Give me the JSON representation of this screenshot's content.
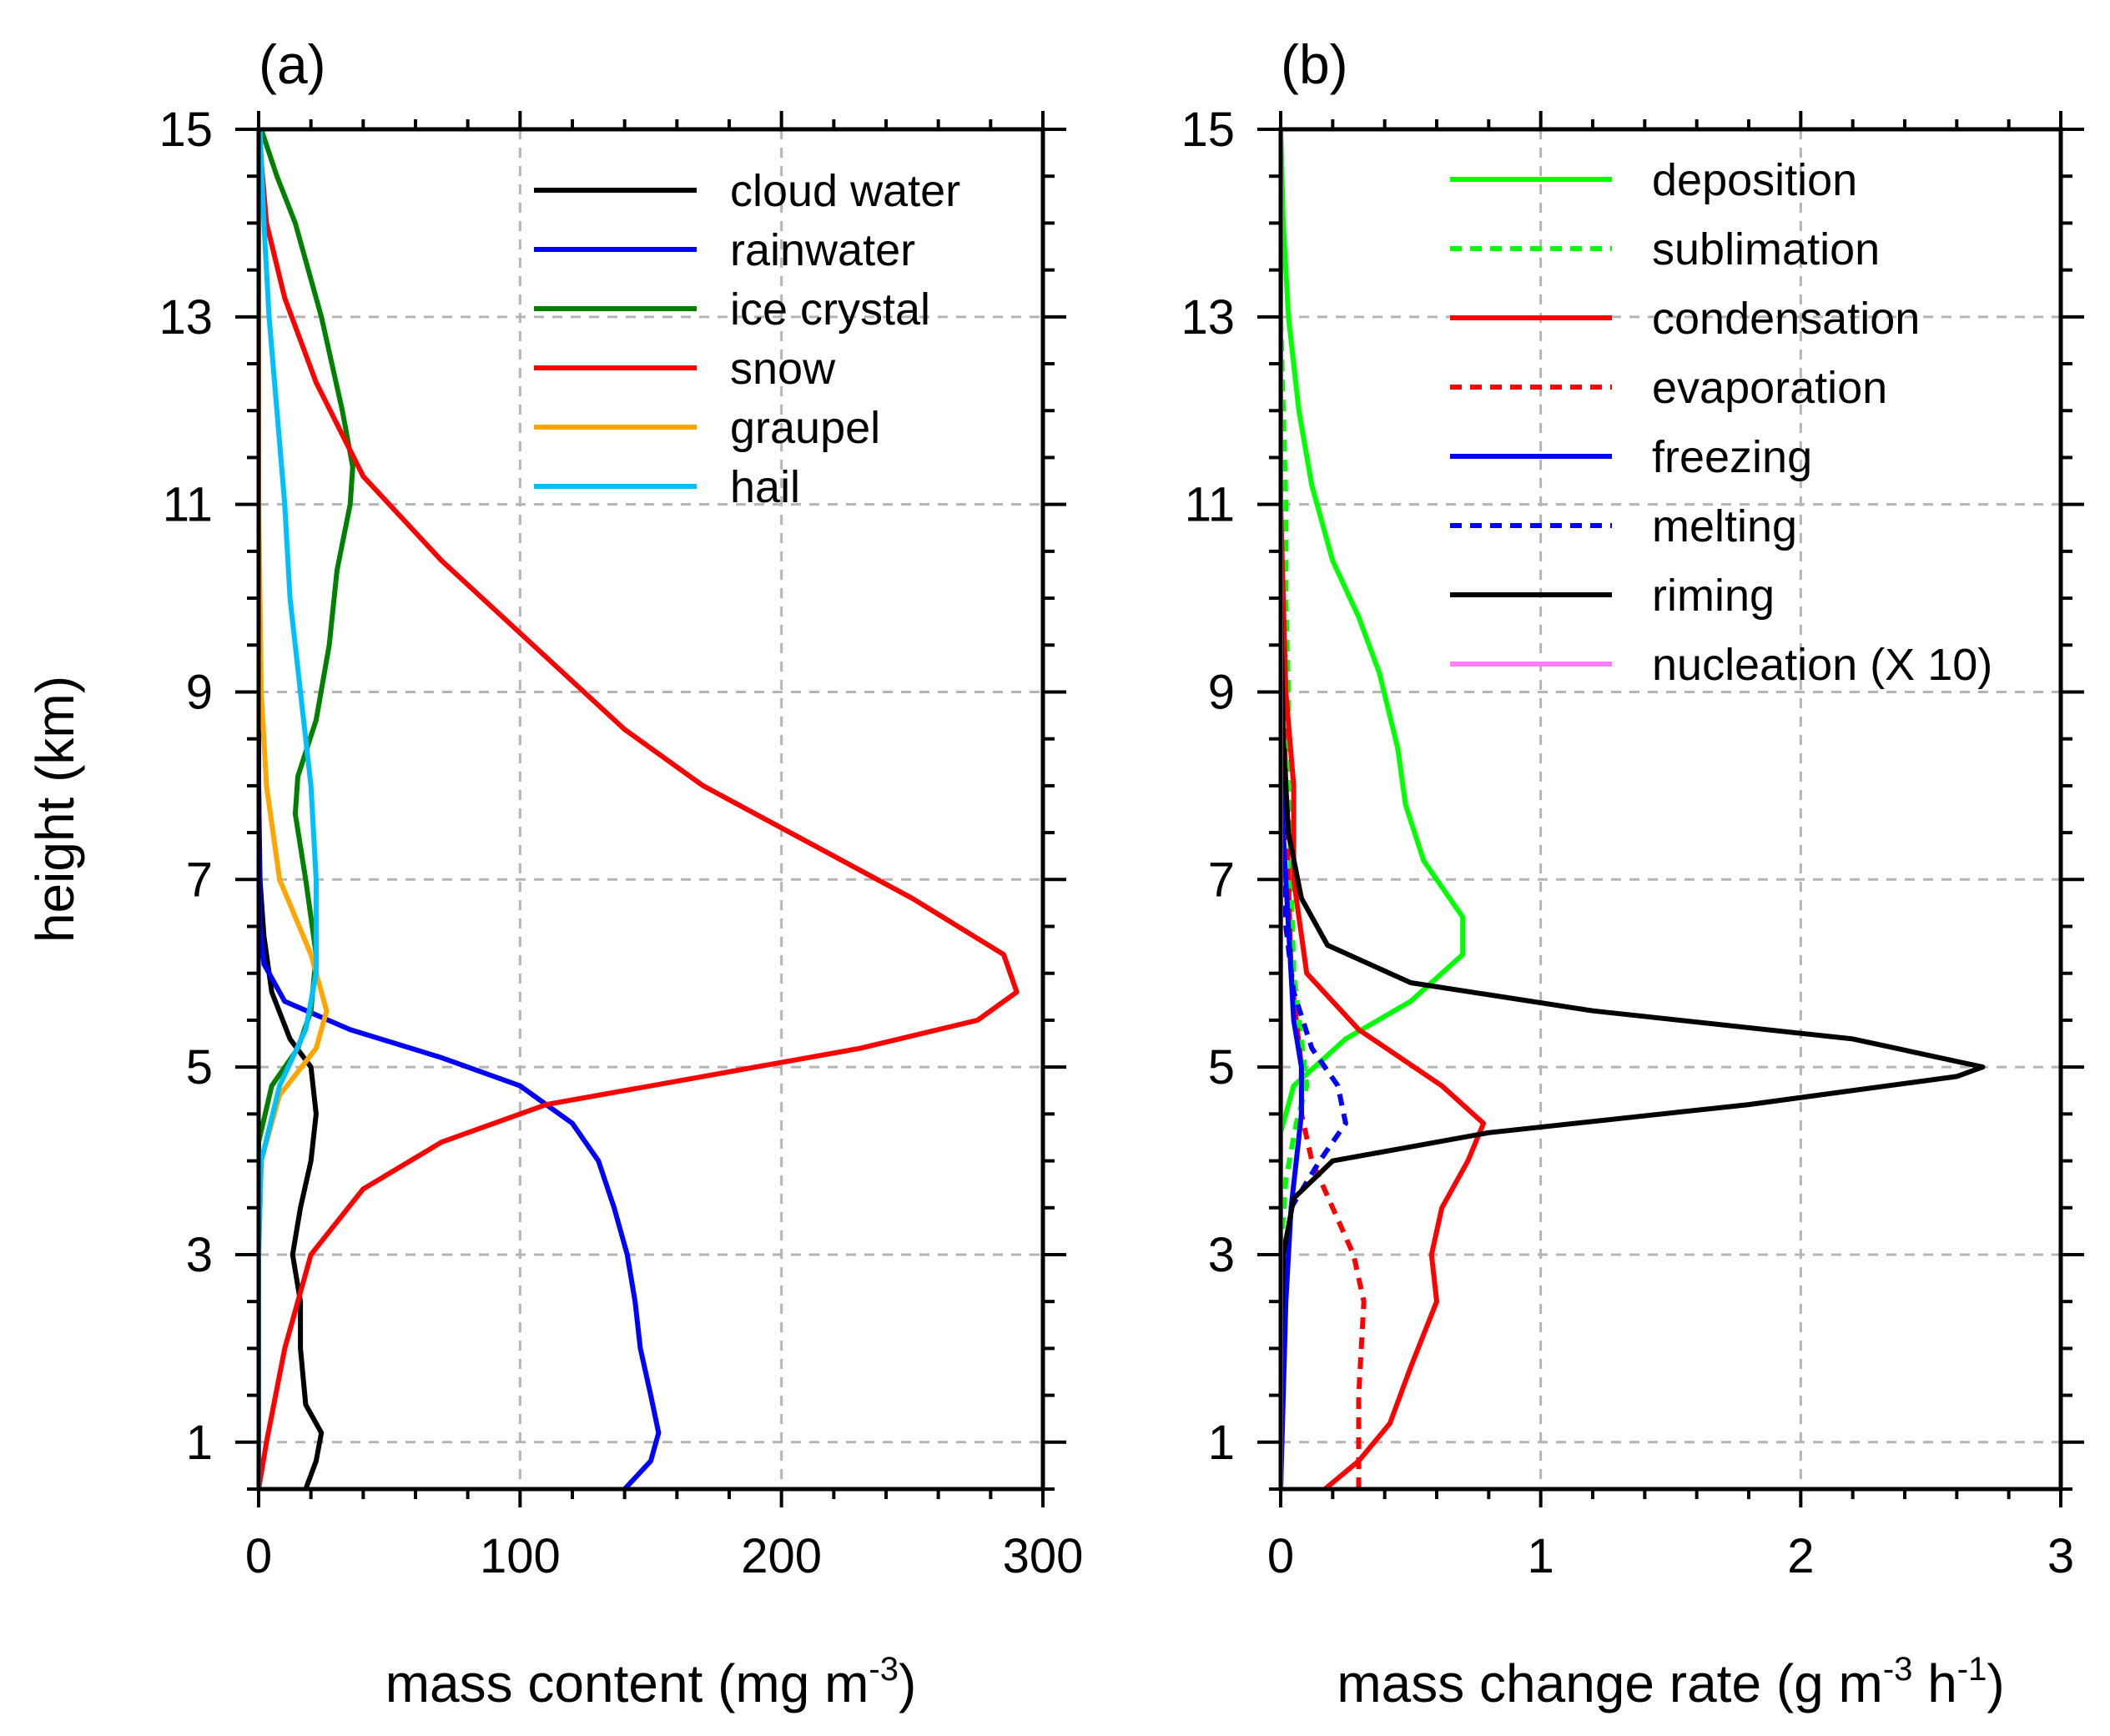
{
  "chart_data": [
    {
      "type": "line",
      "panel_label": "(a)",
      "xlabel": "mass content (mg m",
      "xlabel_sup": "-3",
      "xlabel_suffix": ")",
      "ylabel": "height (km)",
      "xlim": [
        0,
        300
      ],
      "ylim": [
        0.5,
        15
      ],
      "xticks": [
        0,
        100,
        200,
        300
      ],
      "yticks": [
        1,
        3,
        5,
        7,
        9,
        11,
        13,
        15
      ],
      "grid": true,
      "legend_position": "top-right",
      "series": [
        {
          "name": "cloud water",
          "color": "#000000",
          "dash": false,
          "points": [
            [
              18,
              0.5
            ],
            [
              22,
              0.8
            ],
            [
              24,
              1.1
            ],
            [
              18,
              1.4
            ],
            [
              16,
              2.0
            ],
            [
              16,
              2.5
            ],
            [
              13,
              3.0
            ],
            [
              16,
              3.5
            ],
            [
              20,
              4.0
            ],
            [
              22,
              4.5
            ],
            [
              20,
              5.0
            ],
            [
              12,
              5.3
            ],
            [
              5,
              5.8
            ],
            [
              2,
              6.4
            ],
            [
              0.5,
              7.0
            ],
            [
              0,
              8.0
            ],
            [
              0,
              10
            ],
            [
              0,
              15
            ]
          ]
        },
        {
          "name": "rainwater",
          "color": "#0000ff",
          "dash": false,
          "points": [
            [
              140,
              0.5
            ],
            [
              150,
              0.8
            ],
            [
              153,
              1.1
            ],
            [
              150,
              1.5
            ],
            [
              146,
              2.0
            ],
            [
              144,
              2.5
            ],
            [
              141,
              3.0
            ],
            [
              136,
              3.5
            ],
            [
              130,
              4.0
            ],
            [
              120,
              4.4
            ],
            [
              100,
              4.8
            ],
            [
              70,
              5.1
            ],
            [
              35,
              5.4
            ],
            [
              10,
              5.7
            ],
            [
              2,
              6.1
            ],
            [
              0.5,
              6.5
            ],
            [
              0,
              8
            ],
            [
              0,
              15
            ]
          ]
        },
        {
          "name": "ice crystal",
          "color": "#008000",
          "dash": false,
          "points": [
            [
              0,
              0.5
            ],
            [
              0,
              3.5
            ],
            [
              0,
              4.2
            ],
            [
              5,
              4.8
            ],
            [
              15,
              5.2
            ],
            [
              20,
              5.6
            ],
            [
              22,
              6.2
            ],
            [
              18,
              7.0
            ],
            [
              14,
              7.7
            ],
            [
              15,
              8.1
            ],
            [
              22,
              8.7
            ],
            [
              27,
              9.5
            ],
            [
              30,
              10.3
            ],
            [
              35,
              11.0
            ],
            [
              36,
              11.4
            ],
            [
              32,
              12.0
            ],
            [
              24,
              13.0
            ],
            [
              14,
              14.0
            ],
            [
              7,
              14.5
            ],
            [
              1,
              15.0
            ]
          ]
        },
        {
          "name": "snow",
          "color": "#ff0000",
          "dash": false,
          "points": [
            [
              0,
              0.5
            ],
            [
              3,
              1.0
            ],
            [
              10,
              2.0
            ],
            [
              20,
              3.0
            ],
            [
              40,
              3.7
            ],
            [
              70,
              4.2
            ],
            [
              110,
              4.6
            ],
            [
              170,
              4.9
            ],
            [
              230,
              5.2
            ],
            [
              275,
              5.5
            ],
            [
              290,
              5.8
            ],
            [
              285,
              6.2
            ],
            [
              250,
              6.8
            ],
            [
              210,
              7.4
            ],
            [
              170,
              8.0
            ],
            [
              140,
              8.6
            ],
            [
              105,
              9.5
            ],
            [
              70,
              10.4
            ],
            [
              40,
              11.3
            ],
            [
              22,
              12.3
            ],
            [
              10,
              13.2
            ],
            [
              3,
              14.0
            ],
            [
              0,
              15.0
            ]
          ]
        },
        {
          "name": "graupel",
          "color": "#ffa500",
          "dash": false,
          "points": [
            [
              0,
              0.5
            ],
            [
              0,
              3.0
            ],
            [
              1,
              4.0
            ],
            [
              8,
              4.7
            ],
            [
              22,
              5.2
            ],
            [
              26,
              5.6
            ],
            [
              20,
              6.2
            ],
            [
              8,
              7.0
            ],
            [
              3,
              8.0
            ],
            [
              1,
              9.0
            ],
            [
              0.5,
              10.0
            ],
            [
              0,
              11
            ],
            [
              0,
              15
            ]
          ]
        },
        {
          "name": "hail",
          "color": "#00bfff",
          "dash": false,
          "points": [
            [
              0,
              0.5
            ],
            [
              0,
              3.0
            ],
            [
              1,
              4.0
            ],
            [
              8,
              4.8
            ],
            [
              18,
              5.4
            ],
            [
              22,
              6.0
            ],
            [
              22,
              7.0
            ],
            [
              20,
              8.0
            ],
            [
              16,
              9.0
            ],
            [
              12,
              10.0
            ],
            [
              10,
              11.0
            ],
            [
              7,
              12.0
            ],
            [
              4,
              13.0
            ],
            [
              2,
              14.0
            ],
            [
              0.5,
              15.0
            ]
          ]
        }
      ]
    },
    {
      "type": "line",
      "panel_label": "(b)",
      "xlabel": "mass change rate (g m",
      "xlabel_sup": "-3",
      "xlabel_mid": " h",
      "xlabel_sup2": "-1",
      "xlabel_suffix": ")",
      "ylabel": "",
      "xlim": [
        0,
        3
      ],
      "ylim": [
        0.5,
        15
      ],
      "xticks": [
        0,
        1,
        2,
        3
      ],
      "yticks": [
        1,
        3,
        5,
        7,
        9,
        11,
        13,
        15
      ],
      "grid": true,
      "legend_position": "top-right",
      "series": [
        {
          "name": "deposition",
          "color": "#00ff00",
          "dash": false,
          "points": [
            [
              0,
              0.5
            ],
            [
              0,
              3.0
            ],
            [
              0,
              4.3
            ],
            [
              0.05,
              4.8
            ],
            [
              0.25,
              5.3
            ],
            [
              0.5,
              5.7
            ],
            [
              0.7,
              6.2
            ],
            [
              0.7,
              6.6
            ],
            [
              0.55,
              7.2
            ],
            [
              0.48,
              7.8
            ],
            [
              0.45,
              8.4
            ],
            [
              0.38,
              9.2
            ],
            [
              0.3,
              9.8
            ],
            [
              0.2,
              10.4
            ],
            [
              0.12,
              11.2
            ],
            [
              0.07,
              12.0
            ],
            [
              0.03,
              13.0
            ],
            [
              0.01,
              14.0
            ],
            [
              0,
              15.0
            ]
          ]
        },
        {
          "name": "sublimation",
          "color": "#00ff00",
          "dash": true,
          "points": [
            [
              0,
              0.5
            ],
            [
              0,
              3.0
            ],
            [
              0.02,
              3.8
            ],
            [
              0.06,
              4.4
            ],
            [
              0.1,
              4.8
            ],
            [
              0.08,
              5.3
            ],
            [
              0.05,
              6.0
            ],
            [
              0.04,
              7.0
            ],
            [
              0.03,
              8.0
            ],
            [
              0.03,
              9.0
            ],
            [
              0.02,
              10.0
            ],
            [
              0.02,
              11.0
            ],
            [
              0.01,
              12.0
            ],
            [
              0,
              13.0
            ],
            [
              0,
              15
            ]
          ]
        },
        {
          "name": "condensation",
          "color": "#ff0000",
          "dash": false,
          "points": [
            [
              0.17,
              0.5
            ],
            [
              0.3,
              0.8
            ],
            [
              0.42,
              1.2
            ],
            [
              0.5,
              1.8
            ],
            [
              0.6,
              2.5
            ],
            [
              0.58,
              3.0
            ],
            [
              0.62,
              3.5
            ],
            [
              0.72,
              4.0
            ],
            [
              0.78,
              4.4
            ],
            [
              0.62,
              4.8
            ],
            [
              0.3,
              5.4
            ],
            [
              0.1,
              6.0
            ],
            [
              0.05,
              7.0
            ],
            [
              0.05,
              8.0
            ],
            [
              0.02,
              9.0
            ],
            [
              0.01,
              10.0
            ],
            [
              0,
              11.0
            ],
            [
              0,
              15
            ]
          ]
        },
        {
          "name": "evaporation",
          "color": "#ff0000",
          "dash": true,
          "points": [
            [
              0.3,
              0.5
            ],
            [
              0.3,
              1.0
            ],
            [
              0.3,
              1.5
            ],
            [
              0.31,
              2.0
            ],
            [
              0.32,
              2.5
            ],
            [
              0.28,
              3.0
            ],
            [
              0.2,
              3.5
            ],
            [
              0.12,
              4.0
            ],
            [
              0.08,
              4.5
            ],
            [
              0.08,
              5.0
            ],
            [
              0.06,
              5.5
            ],
            [
              0.04,
              6.0
            ],
            [
              0.03,
              7.0
            ],
            [
              0.02,
              8.0
            ],
            [
              0.01,
              9.0
            ],
            [
              0,
              10
            ],
            [
              0,
              15
            ]
          ]
        },
        {
          "name": "freezing",
          "color": "#0000ff",
          "dash": false,
          "points": [
            [
              0,
              0.5
            ],
            [
              0.02,
              2.5
            ],
            [
              0.04,
              3.5
            ],
            [
              0.08,
              4.5
            ],
            [
              0.08,
              5.0
            ],
            [
              0.05,
              5.5
            ],
            [
              0.03,
              6.5
            ],
            [
              0.01,
              7.5
            ],
            [
              0,
              8.5
            ],
            [
              0,
              15
            ]
          ]
        },
        {
          "name": "melting",
          "color": "#0000ff",
          "dash": true,
          "points": [
            [
              0,
              0.5
            ],
            [
              0.01,
              2.5
            ],
            [
              0.04,
              3.5
            ],
            [
              0.15,
              4.0
            ],
            [
              0.25,
              4.4
            ],
            [
              0.22,
              4.8
            ],
            [
              0.12,
              5.2
            ],
            [
              0.05,
              5.8
            ],
            [
              0.02,
              6.5
            ],
            [
              0,
              7.5
            ],
            [
              0,
              15
            ]
          ]
        },
        {
          "name": "riming",
          "color": "#000000",
          "dash": false,
          "points": [
            [
              0,
              0.5
            ],
            [
              0,
              2.0
            ],
            [
              0.01,
              3.0
            ],
            [
              0.05,
              3.6
            ],
            [
              0.2,
              4.0
            ],
            [
              0.8,
              4.3
            ],
            [
              1.8,
              4.6
            ],
            [
              2.6,
              4.9
            ],
            [
              2.7,
              5.0
            ],
            [
              2.2,
              5.3
            ],
            [
              1.2,
              5.6
            ],
            [
              0.5,
              5.9
            ],
            [
              0.18,
              6.3
            ],
            [
              0.08,
              6.8
            ],
            [
              0.03,
              7.5
            ],
            [
              0.01,
              8.5
            ],
            [
              0,
              10
            ],
            [
              0,
              15
            ]
          ]
        },
        {
          "name": "nucleation (X 10)",
          "color": "#ff80ff",
          "dash": false,
          "points": [
            [
              0,
              0.5
            ],
            [
              0,
              15
            ]
          ]
        }
      ]
    }
  ]
}
